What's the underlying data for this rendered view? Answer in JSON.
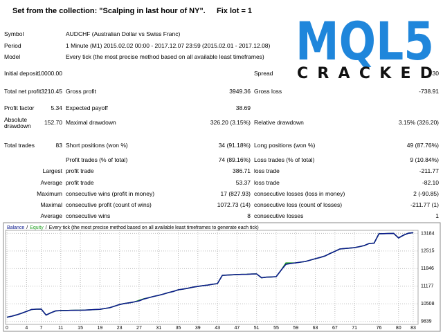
{
  "header": {
    "title": "Set from the collection: \"Scalping in last hour of NY\".",
    "note": "Fix lot = 1"
  },
  "logo": {
    "title": "MQL5",
    "caption": "CRACKED"
  },
  "info": [
    [
      "Symbol",
      "AUDCHF (Australian Dollar vs Swiss Franc)"
    ],
    [
      "Period",
      "1 Minute (M1) 2015.02.02 00:00 - 2017.12.07 23:59 (2015.02.01 - 2017.12.08)"
    ],
    [
      "Model",
      "Every tick (the most precise method based on all available least timeframes)"
    ]
  ],
  "stats": {
    "rows": [
      [
        "Initial deposit",
        "10000.00",
        null,
        null,
        "Spread",
        "30"
      ],
      [
        "Total net profit",
        "3210.45",
        "Gross profit",
        "3949.36",
        "Gross loss",
        "-738.91"
      ],
      [
        "Profit factor",
        "5.34",
        "Expected payoff",
        "38.69",
        null,
        null
      ],
      [
        "Absolute drawdown",
        "152.70",
        "Maximal drawdown",
        "326.20 (3.15%)",
        "Relative drawdown",
        "3.15% (326.20)"
      ],
      [
        "Total trades",
        "83",
        "Short positions (won %)",
        "34 (91.18%)",
        "Long positions (won %)",
        "49 (87.76%)"
      ],
      [
        null,
        null,
        "Profit trades (% of total)",
        "74 (89.16%)",
        "Loss trades (% of total)",
        "9 (10.84%)"
      ],
      [
        null,
        "Largest",
        "profit trade",
        "386.71",
        "loss trade",
        "-211.77"
      ],
      [
        null,
        "Average",
        "profit trade",
        "53.37",
        "loss trade",
        "-82.10"
      ],
      [
        null,
        "Maximum",
        "consecutive wins (profit in money)",
        "17 (827.93)",
        "consecutive losses (loss in money)",
        "2 (-90.85)"
      ],
      [
        null,
        "Maximal",
        "consecutive profit (count of wins)",
        "1072.73 (14)",
        "consecutive loss (count of losses)",
        "-211.77 (1)"
      ],
      [
        null,
        "Average",
        "consecutive wins",
        "8",
        "consecutive losses",
        "1"
      ]
    ]
  },
  "chart_data": {
    "type": "line",
    "subtitle": "Every tick (the most precise method based on all available least timeframes to generate each tick)",
    "legend_separator": "/",
    "x": [
      0,
      1,
      2,
      3,
      4,
      5,
      6,
      7,
      8,
      9,
      10,
      11,
      12,
      13,
      14,
      15,
      16,
      17,
      18,
      19,
      20,
      21,
      22,
      23,
      24,
      25,
      26,
      27,
      28,
      29,
      30,
      31,
      32,
      33,
      34,
      35,
      36,
      37,
      38,
      39,
      40,
      41,
      42,
      43,
      44,
      45,
      46,
      47,
      48,
      49,
      50,
      51,
      52,
      53,
      54,
      55,
      56,
      57,
      58,
      59,
      60,
      61,
      62,
      63,
      64,
      65,
      66,
      67,
      68,
      69,
      70,
      71,
      72,
      73,
      74,
      75,
      76,
      77,
      78,
      79,
      80,
      81,
      82,
      83
    ],
    "series": [
      {
        "name": "Equity",
        "color": "#22a022",
        "values": [
          10000,
          10040,
          10090,
          10150,
          10220,
          10290,
          10305,
          10310,
          10080,
          10170,
          10240,
          10250,
          10255,
          10260,
          10262,
          10265,
          10270,
          10280,
          10290,
          10300,
          10330,
          10360,
          10420,
          10480,
          10520,
          10545,
          10580,
          10640,
          10700,
          10740,
          10790,
          10830,
          10880,
          10935,
          10980,
          11040,
          11070,
          11100,
          11140,
          11170,
          11195,
          11220,
          11250,
          11276,
          11590,
          11600,
          11610,
          11620,
          11625,
          11630,
          11640,
          11645,
          11500,
          11520,
          11530,
          11540,
          11780,
          12060,
          12060,
          12065,
          12090,
          12117,
          12170,
          12222,
          12270,
          12327,
          12420,
          12500,
          12590,
          12610,
          12625,
          12642,
          12680,
          12721,
          12800,
          12810,
          13170,
          13175,
          13180,
          13185,
          13010,
          13115,
          13190,
          13210
        ]
      },
      {
        "name": "Balance",
        "color": "#0c1a8c",
        "values": [
          10000,
          10040,
          10090,
          10150,
          10220,
          10290,
          10305,
          10310,
          10080,
          10170,
          10240,
          10250,
          10255,
          10260,
          10262,
          10265,
          10270,
          10280,
          10290,
          10300,
          10330,
          10360,
          10420,
          10480,
          10520,
          10545,
          10580,
          10620,
          10690,
          10740,
          10790,
          10830,
          10880,
          10935,
          10980,
          11040,
          11070,
          11100,
          11140,
          11170,
          11195,
          11220,
          11250,
          11276,
          11590,
          11600,
          11610,
          11620,
          11625,
          11630,
          11640,
          11645,
          11500,
          11520,
          11530,
          11540,
          11780,
          12010,
          12040,
          12065,
          12090,
          12117,
          12170,
          12222,
          12270,
          12327,
          12420,
          12500,
          12590,
          12610,
          12625,
          12642,
          12680,
          12721,
          12800,
          12810,
          13170,
          13175,
          13180,
          13185,
          13010,
          13115,
          13190,
          13210
        ]
      }
    ],
    "xlim": [
      0,
      83
    ],
    "xticks": [
      0,
      4,
      7,
      11,
      15,
      19,
      23,
      27,
      31,
      35,
      39,
      43,
      47,
      51,
      55,
      59,
      63,
      67,
      71,
      76,
      80,
      83
    ],
    "ylim": [
      9700,
      13300
    ],
    "yticks": [
      9839,
      10508,
      11177,
      11846,
      12515,
      13184
    ],
    "grid": true
  }
}
